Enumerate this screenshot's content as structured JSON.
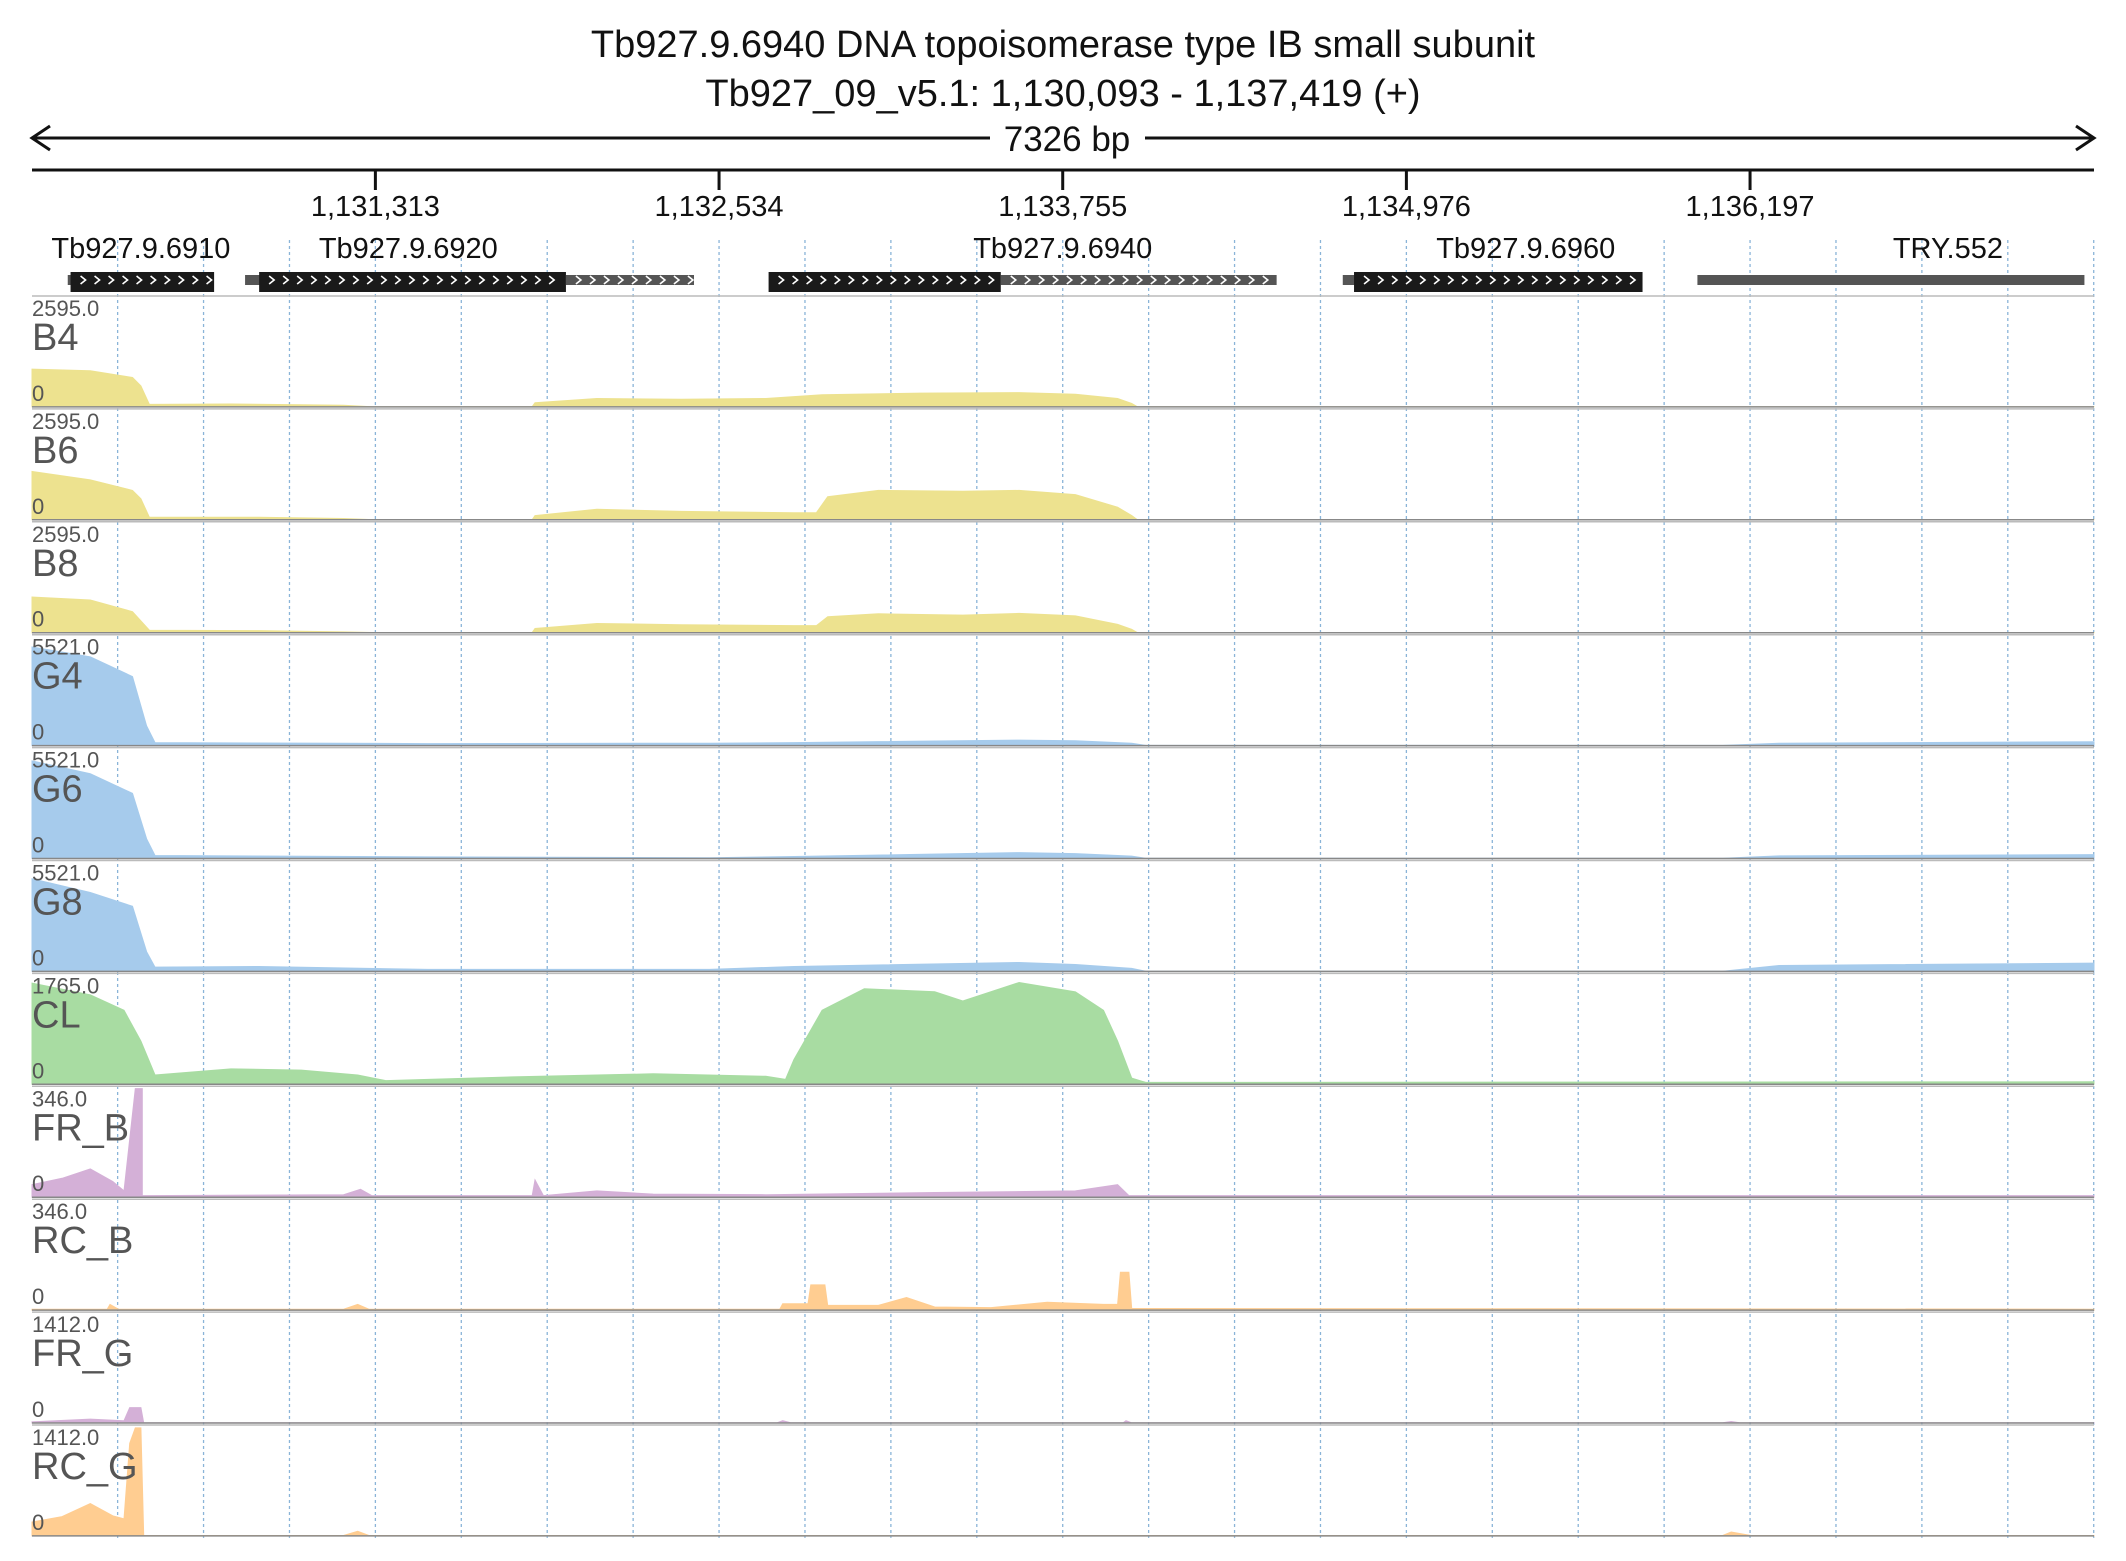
{
  "header": {
    "title": "Tb927.9.6940  DNA topoisomerase type IB small subunit",
    "subtitle": "Tb927_09_v5.1: 1,130,093 - 1,137,419 (+)",
    "span_label": "7326 bp"
  },
  "colors": {
    "yellow": "#ede28f",
    "blue": "#a6cbec",
    "green": "#a8dca2",
    "purple": "#d4b0d7",
    "orange": "#ffcd91",
    "gene_dark": "#1a1a1a",
    "gene_utr": "#555555",
    "grid": "#8ab4d8"
  },
  "chart_data": {
    "type": "area",
    "xlim": [
      1130093,
      1137419
    ],
    "ticks": [
      {
        "pos": 1131313,
        "label": "1,131,313"
      },
      {
        "pos": 1132534,
        "label": "1,132,534"
      },
      {
        "pos": 1133755,
        "label": "1,133,755"
      },
      {
        "pos": 1134976,
        "label": "1,134,976"
      },
      {
        "pos": 1136197,
        "label": "1,136,197"
      }
    ],
    "genes": [
      {
        "name": "Tb927.9.6910",
        "label_pos": 1130480,
        "cds": [
          1130230,
          1130740
        ],
        "utr": [
          [
            1130220,
            1130235
          ]
        ]
      },
      {
        "name": "Tb927.9.6920",
        "label_pos": 1131430,
        "cds": [
          1130900,
          1131990
        ],
        "utr": [
          [
            1130850,
            1130905
          ],
          [
            1131990,
            1132445
          ]
        ]
      },
      {
        "name": "Tb927.9.6940",
        "label_pos": 1133755,
        "cds": [
          1132710,
          1133535
        ],
        "utr": [
          [
            1133535,
            1134515
          ]
        ]
      },
      {
        "name": "Tb927.9.6960",
        "label_pos": 1135400,
        "cds": [
          1134790,
          1135815
        ],
        "utr": [
          [
            1134750,
            1134795
          ]
        ]
      },
      {
        "name": "TRY.552",
        "label_pos": 1136900,
        "cds": null,
        "utr": [
          [
            1136010,
            1137385
          ]
        ]
      }
    ],
    "tracks": [
      {
        "name": "B4",
        "max": "2595.0",
        "min": "0",
        "color": "yellow",
        "points": [
          [
            1130093,
            900
          ],
          [
            1130300,
            860
          ],
          [
            1130450,
            700
          ],
          [
            1130480,
            500
          ],
          [
            1130510,
            60
          ],
          [
            1130800,
            70
          ],
          [
            1131050,
            50
          ],
          [
            1131200,
            40
          ],
          [
            1131300,
            5
          ],
          [
            1131870,
            5
          ],
          [
            1131880,
            100
          ],
          [
            1132100,
            200
          ],
          [
            1132400,
            180
          ],
          [
            1132700,
            200
          ],
          [
            1132900,
            290
          ],
          [
            1133250,
            330
          ],
          [
            1133600,
            340
          ],
          [
            1133800,
            300
          ],
          [
            1133950,
            200
          ],
          [
            1134000,
            80
          ],
          [
            1134020,
            5
          ],
          [
            1137419,
            5
          ]
        ]
      },
      {
        "name": "B6",
        "max": "2595.0",
        "min": "0",
        "color": "yellow",
        "points": [
          [
            1130093,
            1150
          ],
          [
            1130300,
            950
          ],
          [
            1130450,
            700
          ],
          [
            1130480,
            500
          ],
          [
            1130510,
            60
          ],
          [
            1130900,
            60
          ],
          [
            1131200,
            30
          ],
          [
            1131300,
            5
          ],
          [
            1131870,
            5
          ],
          [
            1131880,
            100
          ],
          [
            1132100,
            250
          ],
          [
            1132400,
            200
          ],
          [
            1132800,
            170
          ],
          [
            1132880,
            170
          ],
          [
            1132920,
            550
          ],
          [
            1133100,
            700
          ],
          [
            1133400,
            680
          ],
          [
            1133600,
            700
          ],
          [
            1133800,
            600
          ],
          [
            1133950,
            300
          ],
          [
            1134000,
            100
          ],
          [
            1134020,
            5
          ],
          [
            1137419,
            5
          ]
        ]
      },
      {
        "name": "B8",
        "max": "2595.0",
        "min": "0",
        "color": "yellow",
        "points": [
          [
            1130093,
            850
          ],
          [
            1130300,
            780
          ],
          [
            1130450,
            500
          ],
          [
            1130510,
            60
          ],
          [
            1130900,
            50
          ],
          [
            1131200,
            20
          ],
          [
            1131300,
            5
          ],
          [
            1131870,
            5
          ],
          [
            1131880,
            100
          ],
          [
            1132100,
            220
          ],
          [
            1132400,
            190
          ],
          [
            1132800,
            170
          ],
          [
            1132880,
            170
          ],
          [
            1132920,
            380
          ],
          [
            1133100,
            450
          ],
          [
            1133400,
            420
          ],
          [
            1133600,
            460
          ],
          [
            1133800,
            400
          ],
          [
            1133950,
            200
          ],
          [
            1134000,
            80
          ],
          [
            1134020,
            5
          ],
          [
            1137419,
            5
          ]
        ]
      },
      {
        "name": "G4",
        "max": "5521.0",
        "min": "0",
        "color": "blue",
        "points": [
          [
            1130093,
            5000
          ],
          [
            1130300,
            4500
          ],
          [
            1130450,
            3500
          ],
          [
            1130500,
            1000
          ],
          [
            1130530,
            150
          ],
          [
            1131500,
            100
          ],
          [
            1132500,
            120
          ],
          [
            1132800,
            150
          ],
          [
            1133600,
            280
          ],
          [
            1133800,
            250
          ],
          [
            1134000,
            120
          ],
          [
            1134050,
            10
          ],
          [
            1136100,
            10
          ],
          [
            1136300,
            120
          ],
          [
            1137419,
            200
          ]
        ]
      },
      {
        "name": "G6",
        "max": "5521.0",
        "min": "0",
        "color": "blue",
        "points": [
          [
            1130093,
            4950
          ],
          [
            1130300,
            4300
          ],
          [
            1130450,
            3300
          ],
          [
            1130500,
            1000
          ],
          [
            1130530,
            150
          ],
          [
            1131500,
            80
          ],
          [
            1132500,
            40
          ],
          [
            1132800,
            100
          ],
          [
            1133600,
            300
          ],
          [
            1133800,
            250
          ],
          [
            1134000,
            120
          ],
          [
            1134050,
            10
          ],
          [
            1136100,
            10
          ],
          [
            1136300,
            130
          ],
          [
            1137419,
            200
          ]
        ]
      },
      {
        "name": "G8",
        "max": "5521.0",
        "min": "0",
        "color": "blue",
        "points": [
          [
            1130093,
            4700
          ],
          [
            1130300,
            4000
          ],
          [
            1130450,
            3300
          ],
          [
            1130500,
            1000
          ],
          [
            1130530,
            220
          ],
          [
            1130900,
            250
          ],
          [
            1131500,
            100
          ],
          [
            1132500,
            100
          ],
          [
            1132800,
            250
          ],
          [
            1133600,
            450
          ],
          [
            1133800,
            350
          ],
          [
            1134000,
            150
          ],
          [
            1134050,
            10
          ],
          [
            1136100,
            10
          ],
          [
            1136300,
            300
          ],
          [
            1137419,
            420
          ]
        ]
      },
      {
        "name": "CL",
        "max": "1765.0",
        "min": "0",
        "color": "green",
        "points": [
          [
            1130093,
            1640
          ],
          [
            1130300,
            1450
          ],
          [
            1130420,
            1200
          ],
          [
            1130480,
            700
          ],
          [
            1130530,
            150
          ],
          [
            1130800,
            250
          ],
          [
            1131050,
            230
          ],
          [
            1131250,
            150
          ],
          [
            1131350,
            60
          ],
          [
            1131800,
            120
          ],
          [
            1132300,
            170
          ],
          [
            1132700,
            130
          ],
          [
            1132770,
            80
          ],
          [
            1132800,
            400
          ],
          [
            1132900,
            1200
          ],
          [
            1133050,
            1550
          ],
          [
            1133300,
            1500
          ],
          [
            1133400,
            1350
          ],
          [
            1133600,
            1650
          ],
          [
            1133800,
            1500
          ],
          [
            1133900,
            1200
          ],
          [
            1133950,
            700
          ],
          [
            1134000,
            100
          ],
          [
            1134050,
            30
          ],
          [
            1137419,
            40
          ]
        ]
      },
      {
        "name": "FR_B",
        "max": "346.0",
        "min": "0",
        "color": "purple",
        "points": [
          [
            1130093,
            40
          ],
          [
            1130200,
            60
          ],
          [
            1130300,
            90
          ],
          [
            1130380,
            50
          ],
          [
            1130420,
            20
          ],
          [
            1130460,
            345
          ],
          [
            1130485,
            345
          ],
          [
            1130485,
            5
          ],
          [
            1131200,
            8
          ],
          [
            1131260,
            25
          ],
          [
            1131300,
            5
          ],
          [
            1131870,
            5
          ],
          [
            1131880,
            55
          ],
          [
            1131910,
            5
          ],
          [
            1132100,
            20
          ],
          [
            1132300,
            10
          ],
          [
            1132700,
            8
          ],
          [
            1133300,
            15
          ],
          [
            1133800,
            20
          ],
          [
            1133950,
            40
          ],
          [
            1133990,
            5
          ],
          [
            1137419,
            5
          ]
        ]
      },
      {
        "name": "RC_B",
        "max": "346.0",
        "min": "0",
        "color": "orange",
        "points": [
          [
            1130093,
            3
          ],
          [
            1130360,
            3
          ],
          [
            1130370,
            18
          ],
          [
            1130400,
            3
          ],
          [
            1131200,
            3
          ],
          [
            1131250,
            18
          ],
          [
            1131290,
            3
          ],
          [
            1132750,
            3
          ],
          [
            1132760,
            20
          ],
          [
            1132850,
            20
          ],
          [
            1132860,
            80
          ],
          [
            1132910,
            80
          ],
          [
            1132920,
            15
          ],
          [
            1133100,
            15
          ],
          [
            1133200,
            40
          ],
          [
            1133300,
            10
          ],
          [
            1133500,
            8
          ],
          [
            1133700,
            25
          ],
          [
            1133900,
            18
          ],
          [
            1133950,
            18
          ],
          [
            1133960,
            120
          ],
          [
            1133990,
            120
          ],
          [
            1134000,
            5
          ],
          [
            1137419,
            3
          ]
        ]
      },
      {
        "name": "FR_G",
        "max": "1412.0",
        "min": "0",
        "color": "purple",
        "points": [
          [
            1130093,
            15
          ],
          [
            1130300,
            50
          ],
          [
            1130420,
            30
          ],
          [
            1130440,
            200
          ],
          [
            1130480,
            200
          ],
          [
            1130490,
            3
          ],
          [
            1132740,
            3
          ],
          [
            1132760,
            30
          ],
          [
            1132790,
            3
          ],
          [
            1133970,
            3
          ],
          [
            1133980,
            30
          ],
          [
            1134000,
            3
          ],
          [
            1136100,
            3
          ],
          [
            1136130,
            20
          ],
          [
            1136160,
            3
          ],
          [
            1137419,
            3
          ]
        ]
      },
      {
        "name": "RC_G",
        "max": "1412.0",
        "min": "0",
        "color": "orange",
        "points": [
          [
            1130093,
            180
          ],
          [
            1130200,
            250
          ],
          [
            1130300,
            420
          ],
          [
            1130380,
            260
          ],
          [
            1130420,
            220
          ],
          [
            1130440,
            1200
          ],
          [
            1130460,
            1400
          ],
          [
            1130480,
            1400
          ],
          [
            1130490,
            5
          ],
          [
            1131200,
            5
          ],
          [
            1131250,
            60
          ],
          [
            1131290,
            5
          ],
          [
            1136100,
            5
          ],
          [
            1136130,
            50
          ],
          [
            1136200,
            5
          ],
          [
            1137419,
            5
          ]
        ]
      }
    ]
  }
}
